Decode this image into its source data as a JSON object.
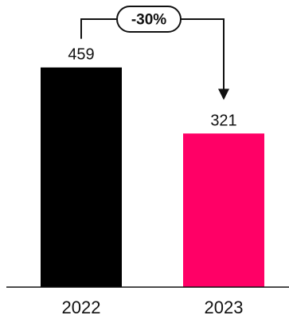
{
  "chart_data": {
    "type": "bar",
    "title": "",
    "xlabel": "",
    "ylabel": "",
    "categories": [
      "2022",
      "2023"
    ],
    "values": [
      459,
      321
    ],
    "value_labels": [
      "459",
      "321"
    ],
    "colors": [
      "#000000",
      "#ff0066"
    ],
    "ylim": [
      0,
      500
    ],
    "grid": false,
    "annotation": {
      "type": "change-arrow",
      "from": "2022",
      "to": "2023",
      "label": "-30%"
    }
  }
}
